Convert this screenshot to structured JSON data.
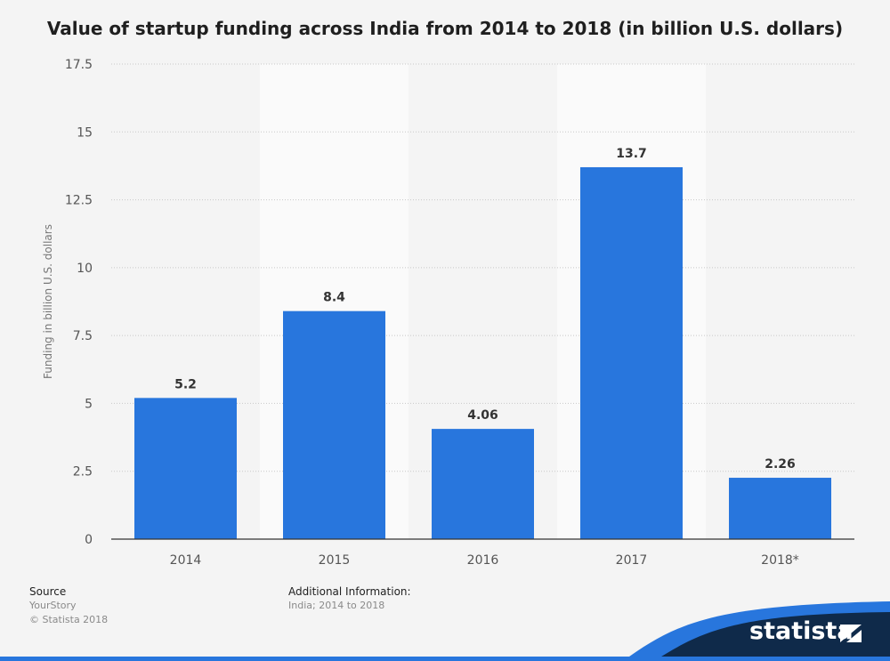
{
  "chart_data": {
    "type": "bar",
    "title": "Value of startup funding across India from 2014 to 2018 (in billion U.S. dollars)",
    "xlabel": "",
    "ylabel": "Funding in billion U.S. dollars",
    "categories": [
      "2014",
      "2015",
      "2016",
      "2017",
      "2018*"
    ],
    "values": [
      5.2,
      8.4,
      4.06,
      13.7,
      2.26
    ],
    "data_labels": [
      "5.2",
      "8.4",
      "4.06",
      "13.7",
      "2.26"
    ],
    "ylim": [
      0,
      17.5
    ],
    "yticks": [
      "0",
      "2.5",
      "5",
      "7.5",
      "10",
      "12.5",
      "15",
      "17.5"
    ],
    "grid": true,
    "bar_color": "#2876dd"
  },
  "footer": {
    "source_label": "Source",
    "source_lines": [
      "YourStory",
      "© Statista 2018"
    ],
    "info_label": "Additional Information:",
    "info_lines": [
      "India; 2014 to 2018"
    ]
  },
  "brand": {
    "logo_text": "statista",
    "accent_color": "#2876dd",
    "dark_color": "#0f2a4a"
  }
}
